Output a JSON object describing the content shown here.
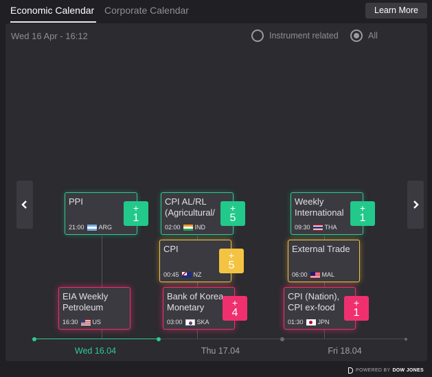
{
  "tabs": [
    {
      "label": "Economic Calendar"
    },
    {
      "label": "Corporate Calendar"
    }
  ],
  "learn_more": "Learn More",
  "datetime": "Wed 16 Apr - 16:12",
  "filters": [
    {
      "label": "Instrument related",
      "checked": false
    },
    {
      "label": "All",
      "checked": true
    }
  ],
  "events": [
    {
      "title": "PPI",
      "time": "21:00",
      "country": "ARG",
      "flag": "flag-argentina",
      "badge": "1",
      "color": "green"
    },
    {
      "title": "EIA Weekly Petroleum",
      "time": "16:30",
      "country": "US",
      "flag": "flag-usa",
      "badge": "",
      "color": "pink"
    },
    {
      "title": "CPI AL/RL (Agricultural/",
      "time": "02:00",
      "country": "IND",
      "flag": "flag-india",
      "badge": "5",
      "color": "green"
    },
    {
      "title": "CPI",
      "time": "00:45",
      "country": "NZ",
      "flag": "flag-new-zealand",
      "badge": "5",
      "color": "yellow"
    },
    {
      "title": "Bank of Korea Monetary",
      "time": "03:00",
      "country": "SKA",
      "flag": "flag-south-korea",
      "badge": "4",
      "color": "pink"
    },
    {
      "title": "Weekly International",
      "time": "09:30",
      "country": "THA",
      "flag": "flag-thailand",
      "badge": "1",
      "color": "green"
    },
    {
      "title": "External Trade",
      "time": "06:00",
      "country": "MAL",
      "flag": "flag-malaysia",
      "badge": "",
      "color": "yellow"
    },
    {
      "title": "CPI (Nation), CPI ex-food",
      "time": "01:30",
      "country": "JPN",
      "flag": "flag-japan",
      "badge": "1",
      "color": "pink"
    }
  ],
  "badge_plus": "+",
  "dates": [
    {
      "label": "Wed 16.04",
      "active": true
    },
    {
      "label": "Thu 17.04",
      "active": false
    },
    {
      "label": "Fri 18.04",
      "active": false
    }
  ],
  "powered_by": {
    "prefix": "POWERED BY",
    "brand": "DOW JONES"
  },
  "colors": {
    "green": "#2ecc8f",
    "yellow": "#f5c342",
    "pink": "#f0306e",
    "background": "#202024",
    "panel": "#2b2b30",
    "card": "#3a3a40"
  }
}
